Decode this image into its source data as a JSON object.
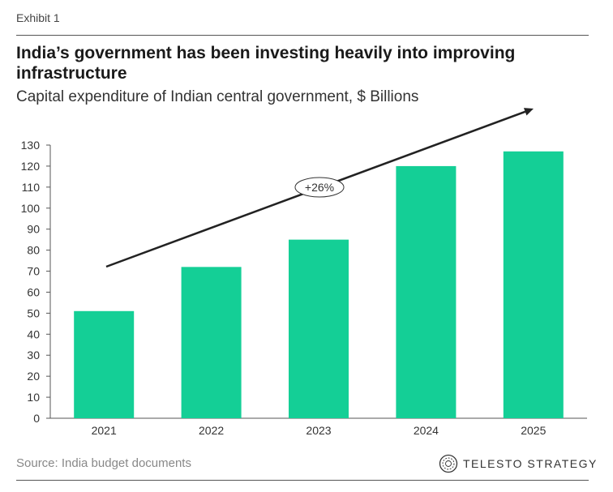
{
  "header": {
    "exhibit": "Exhibit 1",
    "title": "India’s government has been investing heavily into improving infrastructure",
    "subtitle": "Capital expenditure of Indian central government, $ Billions"
  },
  "footer": {
    "source": "Source: India budget documents",
    "brand": "TELESTO STRATEGY"
  },
  "colors": {
    "bar": "#14CF96",
    "arrow": "#222222"
  },
  "chart_data": {
    "type": "bar",
    "categories": [
      "2021",
      "2022",
      "2023",
      "2024",
      "2025"
    ],
    "values": [
      51,
      72,
      85,
      120,
      127
    ],
    "title": "",
    "xlabel": "",
    "ylabel": "",
    "ylim": [
      0,
      130
    ],
    "yticks": [
      0,
      10,
      20,
      30,
      40,
      50,
      60,
      70,
      80,
      90,
      100,
      110,
      120,
      130
    ],
    "grid": false,
    "annotations": [
      {
        "text": "+26%",
        "type": "trend-arrow"
      }
    ]
  }
}
